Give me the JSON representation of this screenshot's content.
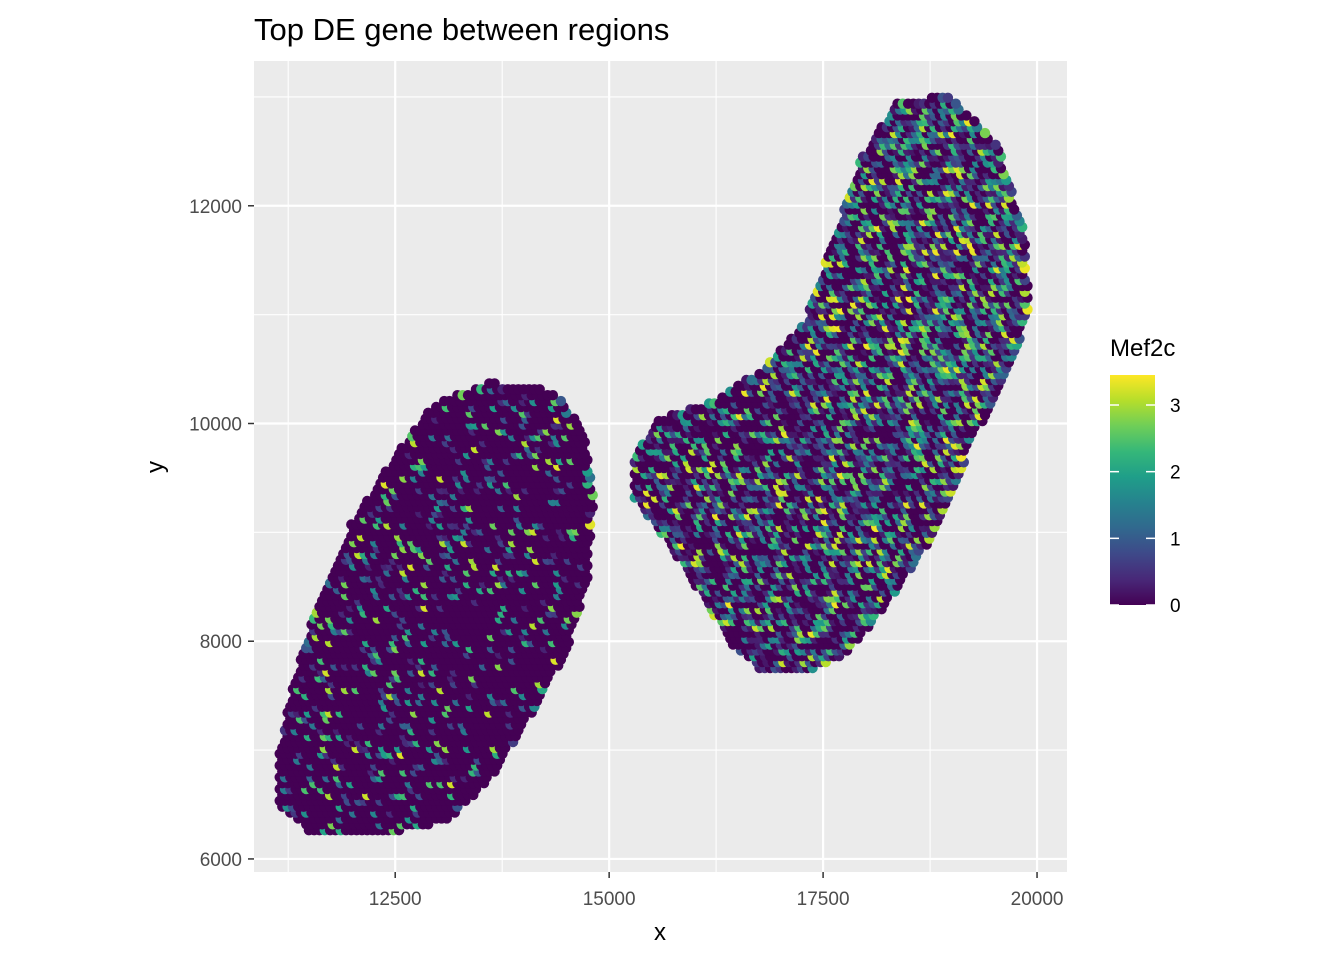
{
  "chart_data": {
    "type": "scatter",
    "title": "Top DE gene between regions",
    "xlabel": "x",
    "ylabel": "y",
    "xlim": [
      10850,
      20350
    ],
    "ylim": [
      5880,
      13330
    ],
    "x_ticks": [
      12500,
      15000,
      17500,
      20000
    ],
    "x_tick_labels": [
      "12500",
      "15000",
      "17500",
      "20000"
    ],
    "y_ticks": [
      6000,
      8000,
      10000,
      12000
    ],
    "y_tick_labels": [
      "6000",
      "8000",
      "10000",
      "12000"
    ],
    "grid": true,
    "legend": {
      "title": "Mef2c",
      "position": "right",
      "type": "colorbar",
      "range": [
        0,
        3.45
      ],
      "ticks": [
        0,
        1,
        2,
        3
      ],
      "tick_labels": [
        "0",
        "1",
        "2",
        "3"
      ],
      "colormap": [
        "#440154",
        "#482878",
        "#3e4989",
        "#31688e",
        "#26828e",
        "#1f9e89",
        "#35b779",
        "#6ece58",
        "#b5de2b",
        "#fde725"
      ]
    },
    "regions": [
      {
        "name": "",
        "expression_level": "low",
        "outline": [
          [
            11550,
            6220
          ],
          [
            12150,
            6210
          ],
          [
            12700,
            6280
          ],
          [
            13150,
            6370
          ],
          [
            13650,
            6780
          ],
          [
            14100,
            7350
          ],
          [
            14500,
            7900
          ],
          [
            14750,
            8550
          ],
          [
            14820,
            9350
          ],
          [
            14700,
            9950
          ],
          [
            14350,
            10300
          ],
          [
            13600,
            10380
          ],
          [
            12950,
            10180
          ],
          [
            12550,
            9750
          ],
          [
            12000,
            9100
          ],
          [
            11600,
            8350
          ],
          [
            11300,
            7600
          ],
          [
            11150,
            7000
          ],
          [
            11150,
            6500
          ]
        ]
      },
      {
        "name": "",
        "expression_level": "high",
        "outline": [
          [
            15300,
            9300
          ],
          [
            15650,
            8950
          ],
          [
            16050,
            8450
          ],
          [
            16450,
            7950
          ],
          [
            16800,
            7720
          ],
          [
            17300,
            7700
          ],
          [
            17800,
            7900
          ],
          [
            18300,
            8400
          ],
          [
            18850,
            9050
          ],
          [
            19250,
            9850
          ],
          [
            19650,
            10450
          ],
          [
            19920,
            11050
          ],
          [
            19850,
            11750
          ],
          [
            19550,
            12550
          ],
          [
            19000,
            13000
          ],
          [
            18400,
            12980
          ],
          [
            17950,
            12450
          ],
          [
            17650,
            11750
          ],
          [
            17300,
            10950
          ],
          [
            16800,
            10500
          ],
          [
            16200,
            10200
          ],
          [
            15600,
            10050
          ],
          [
            15300,
            9700
          ]
        ]
      }
    ]
  }
}
